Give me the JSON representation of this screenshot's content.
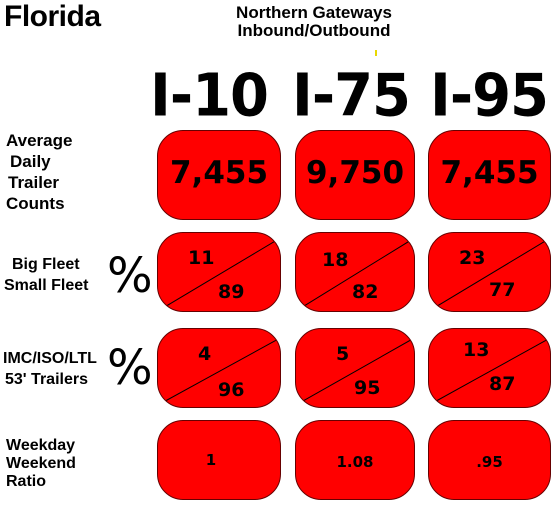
{
  "title": "Florida",
  "subtitle_line1": "Northern Gateways",
  "subtitle_line2": "Inbound/Outbound",
  "highways": [
    "I-10",
    "I-75",
    "I-95"
  ],
  "rows": {
    "trailer_counts": {
      "label_lines": [
        "Average",
        "Daily",
        "Trailer",
        "Counts"
      ],
      "values": [
        "7,455",
        "9,750",
        "7,455"
      ]
    },
    "fleet": {
      "label_lines": [
        "Big Fleet",
        "Small Fleet"
      ],
      "symbol": "%",
      "top_values": [
        "11",
        "18",
        "23"
      ],
      "bottom_values": [
        "89",
        "82",
        "77"
      ]
    },
    "trailers": {
      "label_lines": [
        "IMC/ISO/LTL",
        "53' Trailers"
      ],
      "symbol": "%",
      "top_values": [
        "4",
        "5",
        "13"
      ],
      "bottom_values": [
        "96",
        "95",
        "87"
      ]
    },
    "ratio": {
      "label_lines": [
        "Weekday",
        "Weekend",
        "Ratio"
      ],
      "values": [
        "1",
        "1.08",
        ".95"
      ]
    }
  },
  "colors": {
    "cell_fill": "#ff0000",
    "text": "#000000",
    "background": "#ffffff"
  }
}
